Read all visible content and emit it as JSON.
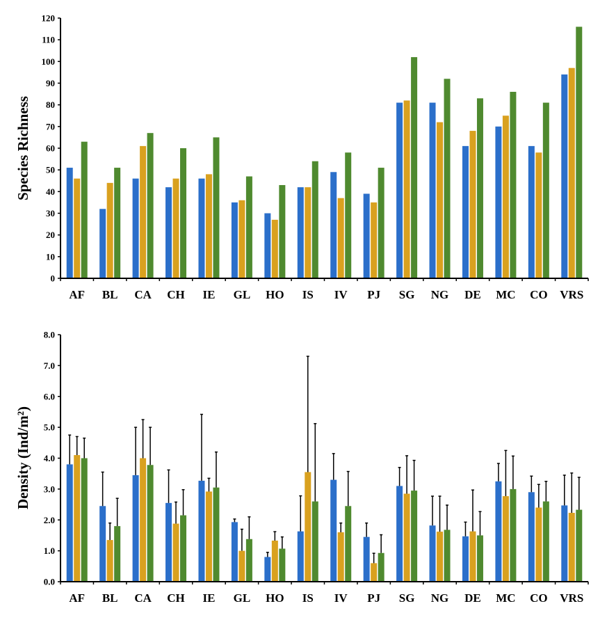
{
  "colors": {
    "series1": "#2b6fca",
    "series2": "#d9a11f",
    "series3": "#4f8a2f",
    "axis": "#000000",
    "error": "#000000"
  },
  "chart_data": [
    {
      "type": "bar",
      "ylabel": "Species Richness",
      "ylim": [
        0,
        120
      ],
      "yticks": [
        "0",
        "10",
        "20",
        "30",
        "40",
        "50",
        "60",
        "70",
        "80",
        "90",
        "100",
        "110",
        "120"
      ],
      "grid": false,
      "legend": "none",
      "categories": [
        "AF",
        "BL",
        "CA",
        "CH",
        "IE",
        "GL",
        "HO",
        "IS",
        "IV",
        "PJ",
        "SG",
        "NG",
        "DE",
        "MC",
        "CO",
        "VRS"
      ],
      "series": [
        {
          "values": [
            51,
            32,
            46,
            42,
            46,
            35,
            30,
            42,
            49,
            39,
            81,
            81,
            61,
            70,
            61,
            94
          ]
        },
        {
          "values": [
            46,
            44,
            61,
            46,
            48,
            36,
            27,
            42,
            37,
            35,
            82,
            72,
            68,
            75,
            58,
            97
          ]
        },
        {
          "values": [
            63,
            51,
            67,
            60,
            65,
            47,
            43,
            54,
            58,
            51,
            102,
            92,
            83,
            86,
            81,
            116
          ]
        }
      ]
    },
    {
      "type": "bar",
      "ylabel": "Density (Ind/m²)",
      "ylim": [
        0,
        8
      ],
      "yticks": [
        "0.0",
        "1.0",
        "2.0",
        "3.0",
        "4.0",
        "5.0",
        "6.0",
        "7.0",
        "8.0"
      ],
      "grid": false,
      "legend": "none",
      "error_bars": "upper",
      "categories": [
        "AF",
        "BL",
        "CA",
        "CH",
        "IE",
        "GL",
        "HO",
        "IS",
        "IV",
        "PJ",
        "SG",
        "NG",
        "DE",
        "MC",
        "CO",
        "VRS"
      ],
      "series": [
        {
          "values": [
            3.8,
            2.45,
            3.45,
            2.55,
            3.27,
            1.93,
            0.8,
            1.63,
            3.3,
            1.45,
            3.1,
            1.82,
            1.47,
            3.25,
            2.9,
            2.47
          ],
          "errors": [
            0.95,
            1.1,
            1.55,
            1.07,
            2.15,
            0.1,
            0.15,
            1.15,
            0.85,
            0.45,
            0.6,
            0.95,
            0.46,
            0.58,
            0.52,
            0.98
          ]
        },
        {
          "values": [
            4.1,
            1.35,
            4.0,
            1.88,
            2.92,
            1.0,
            1.33,
            3.55,
            1.6,
            0.6,
            2.85,
            1.62,
            1.63,
            2.77,
            2.4,
            2.23
          ],
          "errors": [
            0.6,
            0.55,
            1.25,
            0.7,
            0.43,
            0.7,
            0.29,
            3.75,
            0.3,
            0.32,
            1.23,
            1.15,
            1.34,
            1.48,
            0.75,
            1.29
          ]
        },
        {
          "values": [
            4.0,
            1.8,
            3.78,
            2.15,
            3.05,
            1.38,
            1.07,
            2.6,
            2.45,
            0.93,
            2.95,
            1.68,
            1.5,
            3.0,
            2.6,
            2.33
          ],
          "errors": [
            0.65,
            0.9,
            1.22,
            0.83,
            1.15,
            0.72,
            0.38,
            2.52,
            1.12,
            0.59,
            0.98,
            0.8,
            0.77,
            1.07,
            0.65,
            1.05
          ]
        }
      ]
    }
  ]
}
